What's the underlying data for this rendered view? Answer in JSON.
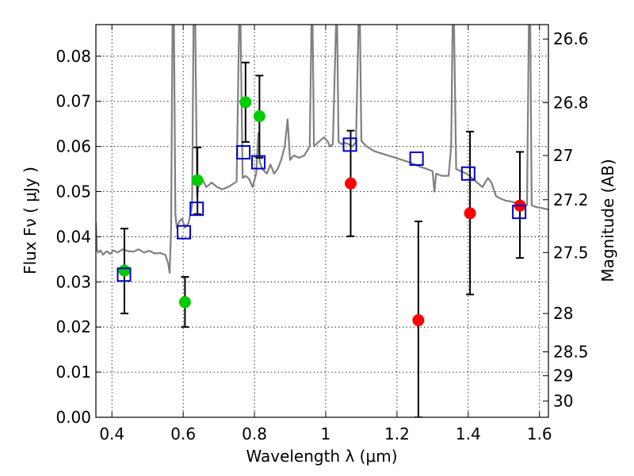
{
  "chart_data": {
    "type": "scatter",
    "xlabel": "Wavelength  λ (μm)",
    "ylabel": "Flux  Fν  ( μJy )",
    "ylabel_right": "Magnitude (AB)",
    "xlim": [
      0.355,
      1.625
    ],
    "ylim": [
      0.0,
      0.087
    ],
    "grid": true,
    "x_ticks": [
      0.4,
      0.6,
      0.8,
      1,
      1.2,
      1.4,
      1.6
    ],
    "x_tick_labels": [
      "0.4",
      "0.6",
      "0.8",
      "1",
      "1.2",
      "1.4",
      "1.6"
    ],
    "y_ticks": [
      0.0,
      0.01,
      0.02,
      0.03,
      0.04,
      0.05,
      0.06,
      0.07,
      0.08
    ],
    "y_tick_labels": [
      "0.00",
      "0.01",
      "0.02",
      "0.03",
      "0.04",
      "0.05",
      "0.06",
      "0.07",
      "0.08"
    ],
    "right_ticks": [
      {
        "label": "26.6",
        "flux": 0.0838
      },
      {
        "label": "26.8",
        "flux": 0.0697
      },
      {
        "label": "27",
        "flux": 0.058
      },
      {
        "label": "27.2",
        "flux": 0.0482
      },
      {
        "label": "27.5",
        "flux": 0.0365
      },
      {
        "label": "28",
        "flux": 0.023
      },
      {
        "label": "28.5",
        "flux": 0.0145
      },
      {
        "label": "29",
        "flux": 0.0092
      },
      {
        "label": "30",
        "flux": 0.0036
      }
    ],
    "model_spectrum": {
      "name": "",
      "color": "#808080",
      "points": [
        [
          0.355,
          0.0433
        ],
        [
          0.358,
          0.037
        ],
        [
          0.362,
          0.0365
        ],
        [
          0.368,
          0.037
        ],
        [
          0.375,
          0.036
        ],
        [
          0.385,
          0.0368
        ],
        [
          0.395,
          0.0362
        ],
        [
          0.405,
          0.037
        ],
        [
          0.415,
          0.0365
        ],
        [
          0.43,
          0.0372
        ],
        [
          0.445,
          0.0368
        ],
        [
          0.46,
          0.0367
        ],
        [
          0.475,
          0.0372
        ],
        [
          0.49,
          0.0365
        ],
        [
          0.505,
          0.0369
        ],
        [
          0.52,
          0.0363
        ],
        [
          0.535,
          0.0364
        ],
        [
          0.55,
          0.036
        ],
        [
          0.558,
          0.034
        ],
        [
          0.562,
          0.032
        ],
        [
          0.566,
          0.042
        ],
        [
          0.57,
          0.087
        ],
        [
          0.574,
          0.087
        ],
        [
          0.578,
          0.045
        ],
        [
          0.582,
          0.042
        ],
        [
          0.587,
          0.043
        ],
        [
          0.59,
          0.0435
        ],
        [
          0.597,
          0.044
        ],
        [
          0.605,
          0.042
        ],
        [
          0.615,
          0.043
        ],
        [
          0.625,
          0.047
        ],
        [
          0.629,
          0.087
        ],
        [
          0.634,
          0.087
        ],
        [
          0.639,
          0.049
        ],
        [
          0.645,
          0.052
        ],
        [
          0.655,
          0.0525
        ],
        [
          0.665,
          0.051
        ],
        [
          0.68,
          0.052
        ],
        [
          0.695,
          0.051
        ],
        [
          0.71,
          0.0505
        ],
        [
          0.73,
          0.0512
        ],
        [
          0.75,
          0.0522
        ],
        [
          0.757,
          0.087
        ],
        [
          0.761,
          0.087
        ],
        [
          0.767,
          0.053
        ],
        [
          0.775,
          0.0535
        ],
        [
          0.785,
          0.0528
        ],
        [
          0.795,
          0.051
        ],
        [
          0.805,
          0.054
        ],
        [
          0.811,
          0.063
        ],
        [
          0.815,
          0.0565
        ],
        [
          0.822,
          0.055
        ],
        [
          0.835,
          0.054
        ],
        [
          0.845,
          0.056
        ],
        [
          0.855,
          0.054
        ],
        [
          0.865,
          0.055
        ],
        [
          0.875,
          0.057
        ],
        [
          0.885,
          0.06
        ],
        [
          0.893,
          0.066
        ],
        [
          0.9,
          0.057
        ],
        [
          0.91,
          0.058
        ],
        [
          0.925,
          0.0575
        ],
        [
          0.94,
          0.058
        ],
        [
          0.955,
          0.06
        ],
        [
          0.96,
          0.087
        ],
        [
          0.963,
          0.087
        ],
        [
          0.967,
          0.06
        ],
        [
          0.98,
          0.061
        ],
        [
          0.995,
          0.062
        ],
        [
          1.005,
          0.0612
        ],
        [
          1.012,
          0.06
        ],
        [
          1.02,
          0.0605
        ],
        [
          1.029,
          0.087
        ],
        [
          1.032,
          0.087
        ],
        [
          1.036,
          0.061
        ],
        [
          1.045,
          0.0605
        ],
        [
          1.055,
          0.0608
        ],
        [
          1.065,
          0.0605
        ],
        [
          1.075,
          0.06
        ],
        [
          1.085,
          0.061
        ],
        [
          1.092,
          0.087
        ],
        [
          1.096,
          0.087
        ],
        [
          1.1,
          0.0612
        ],
        [
          1.115,
          0.06
        ],
        [
          1.135,
          0.059
        ],
        [
          1.155,
          0.0585
        ],
        [
          1.175,
          0.058
        ],
        [
          1.195,
          0.0575
        ],
        [
          1.215,
          0.057
        ],
        [
          1.235,
          0.0565
        ],
        [
          1.25,
          0.056
        ],
        [
          1.265,
          0.0555
        ],
        [
          1.285,
          0.055
        ],
        [
          1.3,
          0.0545
        ],
        [
          1.305,
          0.05
        ],
        [
          1.31,
          0.054
        ],
        [
          1.325,
          0.0535
        ],
        [
          1.345,
          0.0535
        ],
        [
          1.352,
          0.06
        ],
        [
          1.356,
          0.087
        ],
        [
          1.36,
          0.087
        ],
        [
          1.366,
          0.055
        ],
        [
          1.38,
          0.0545
        ],
        [
          1.395,
          0.054
        ],
        [
          1.41,
          0.053
        ],
        [
          1.425,
          0.052
        ],
        [
          1.44,
          0.051
        ],
        [
          1.455,
          0.053
        ],
        [
          1.465,
          0.052
        ],
        [
          1.478,
          0.049
        ],
        [
          1.49,
          0.0485
        ],
        [
          1.505,
          0.048
        ],
        [
          1.52,
          0.0478
        ],
        [
          1.535,
          0.0475
        ],
        [
          1.55,
          0.0472
        ],
        [
          1.565,
          0.047
        ],
        [
          1.57,
          0.087
        ],
        [
          1.574,
          0.087
        ],
        [
          1.578,
          0.047
        ],
        [
          1.59,
          0.0466
        ],
        [
          1.61,
          0.0463
        ],
        [
          1.625,
          0.046
        ]
      ]
    },
    "series": [
      {
        "name": "",
        "marker": "circle",
        "color": "#00cc00",
        "points": [
          {
            "x": 0.435,
            "y": 0.0325,
            "yerr_low": 0.023,
            "yerr_high": 0.0418
          },
          {
            "x": 0.605,
            "y": 0.0255,
            "yerr_low": 0.02,
            "yerr_high": 0.0311
          },
          {
            "x": 0.64,
            "y": 0.0525,
            "yerr_low": 0.045,
            "yerr_high": 0.0598
          },
          {
            "x": 0.775,
            "y": 0.0698,
            "yerr_low": 0.061,
            "yerr_high": 0.0786
          },
          {
            "x": 0.814,
            "y": 0.0667,
            "yerr_low": 0.0575,
            "yerr_high": 0.0757
          }
        ]
      },
      {
        "name": "",
        "marker": "circle",
        "color": "#ff0000",
        "points": [
          {
            "x": 1.07,
            "y": 0.0518,
            "yerr_low": 0.0401,
            "yerr_high": 0.0635
          },
          {
            "x": 1.26,
            "y": 0.0215,
            "yerr_low": 0.0,
            "yerr_high": 0.0434
          },
          {
            "x": 1.405,
            "y": 0.0452,
            "yerr_low": 0.0272,
            "yerr_high": 0.0633
          },
          {
            "x": 1.545,
            "y": 0.0469,
            "yerr_low": 0.0353,
            "yerr_high": 0.0588
          }
        ]
      },
      {
        "name": "",
        "marker": "square",
        "color": "#0000cc",
        "points": [
          {
            "x": 0.434,
            "y": 0.0316
          },
          {
            "x": 0.602,
            "y": 0.041
          },
          {
            "x": 0.638,
            "y": 0.0462
          },
          {
            "x": 0.769,
            "y": 0.0587
          },
          {
            "x": 0.811,
            "y": 0.0565
          },
          {
            "x": 1.068,
            "y": 0.0604
          },
          {
            "x": 1.255,
            "y": 0.0573
          },
          {
            "x": 1.4,
            "y": 0.054
          },
          {
            "x": 1.543,
            "y": 0.0455
          }
        ]
      }
    ]
  }
}
